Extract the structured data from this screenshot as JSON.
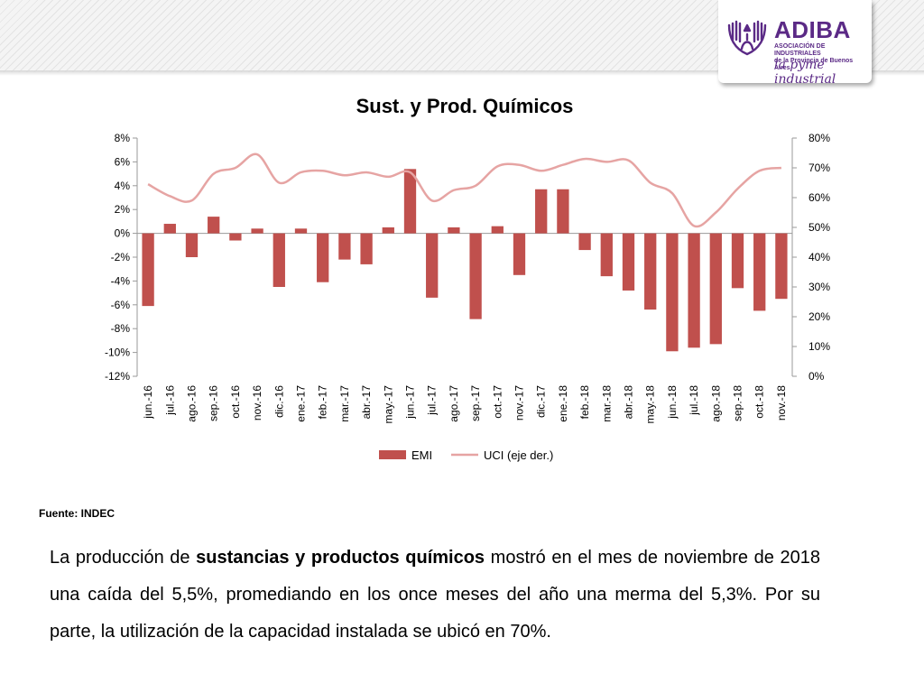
{
  "header": {
    "logo": {
      "name": "ADIBA",
      "subtitle_line1": "ASOCIACIÓN DE INDUSTRIALES",
      "subtitle_line2": "de la Provincia de Buenos Aires",
      "tagline": "la pyme industrial",
      "color": "#5b2a86"
    }
  },
  "chart_data": {
    "type": "bar",
    "title": "Sust. y Prod. Químicos",
    "categories": [
      "jun.-16",
      "jul.-16",
      "ago.-16",
      "sep.-16",
      "oct.-16",
      "nov.-16",
      "dic.-16",
      "ene.-17",
      "feb.-17",
      "mar.-17",
      "abr.-17",
      "may.-17",
      "jun.-17",
      "jul.-17",
      "ago.-17",
      "sep.-17",
      "oct.-17",
      "nov.-17",
      "dic.-17",
      "ene.-18",
      "feb.-18",
      "mar.-18",
      "abr.-18",
      "may.-18",
      "jun.-18",
      "jul.-18",
      "ago.-18",
      "sep.-18",
      "oct.-18",
      "nov.-18"
    ],
    "series": [
      {
        "name": "EMI",
        "type": "bar",
        "axis": "left",
        "color": "#c0504d",
        "values": [
          -6.1,
          0.8,
          -2.0,
          1.4,
          -0.6,
          0.4,
          -4.5,
          0.4,
          -4.1,
          -2.2,
          -2.6,
          0.5,
          5.4,
          -5.4,
          0.5,
          -7.2,
          0.6,
          -3.5,
          3.7,
          3.7,
          -1.4,
          -3.6,
          -4.8,
          -6.4,
          -9.9,
          -9.6,
          -9.3,
          -4.6,
          -6.5,
          -5.5
        ]
      },
      {
        "name": "UCI (eje der.)",
        "type": "line",
        "axis": "right",
        "color": "#e6a4a3",
        "values": [
          64.5,
          60.5,
          59,
          68,
          70,
          74.5,
          65,
          68.5,
          69,
          67.5,
          68.5,
          67,
          68.5,
          59,
          62.5,
          64,
          70.5,
          71,
          69,
          71,
          73,
          72,
          72.5,
          65,
          61.5,
          50.5,
          55,
          63,
          69,
          70
        ]
      }
    ],
    "y_left": {
      "min": -12,
      "max": 8,
      "step": 2,
      "ticks": [
        "8%",
        "6%",
        "4%",
        "2%",
        "0%",
        "-2%",
        "-4%",
        "-6%",
        "-8%",
        "-10%",
        "-12%"
      ]
    },
    "y_right": {
      "min": 0,
      "max": 80,
      "step": 10,
      "ticks": [
        "80%",
        "70%",
        "60%",
        "50%",
        "40%",
        "30%",
        "20%",
        "10%",
        "0%"
      ]
    },
    "legend": [
      "EMI",
      "UCI (eje der.)"
    ],
    "legend_position": "bottom",
    "grid": false
  },
  "footer": {
    "source": "Fuente: INDEC",
    "paragraph": {
      "p1": "La producción de ",
      "p2": "sustancias y productos químicos",
      "p3": " mostró en el mes de noviembre de 2018 una caída del 5,5%, promediando en los once meses del año una merma del 5,3%. Por su parte, la utilización de la capacidad instalada se ubicó en 70%."
    }
  }
}
